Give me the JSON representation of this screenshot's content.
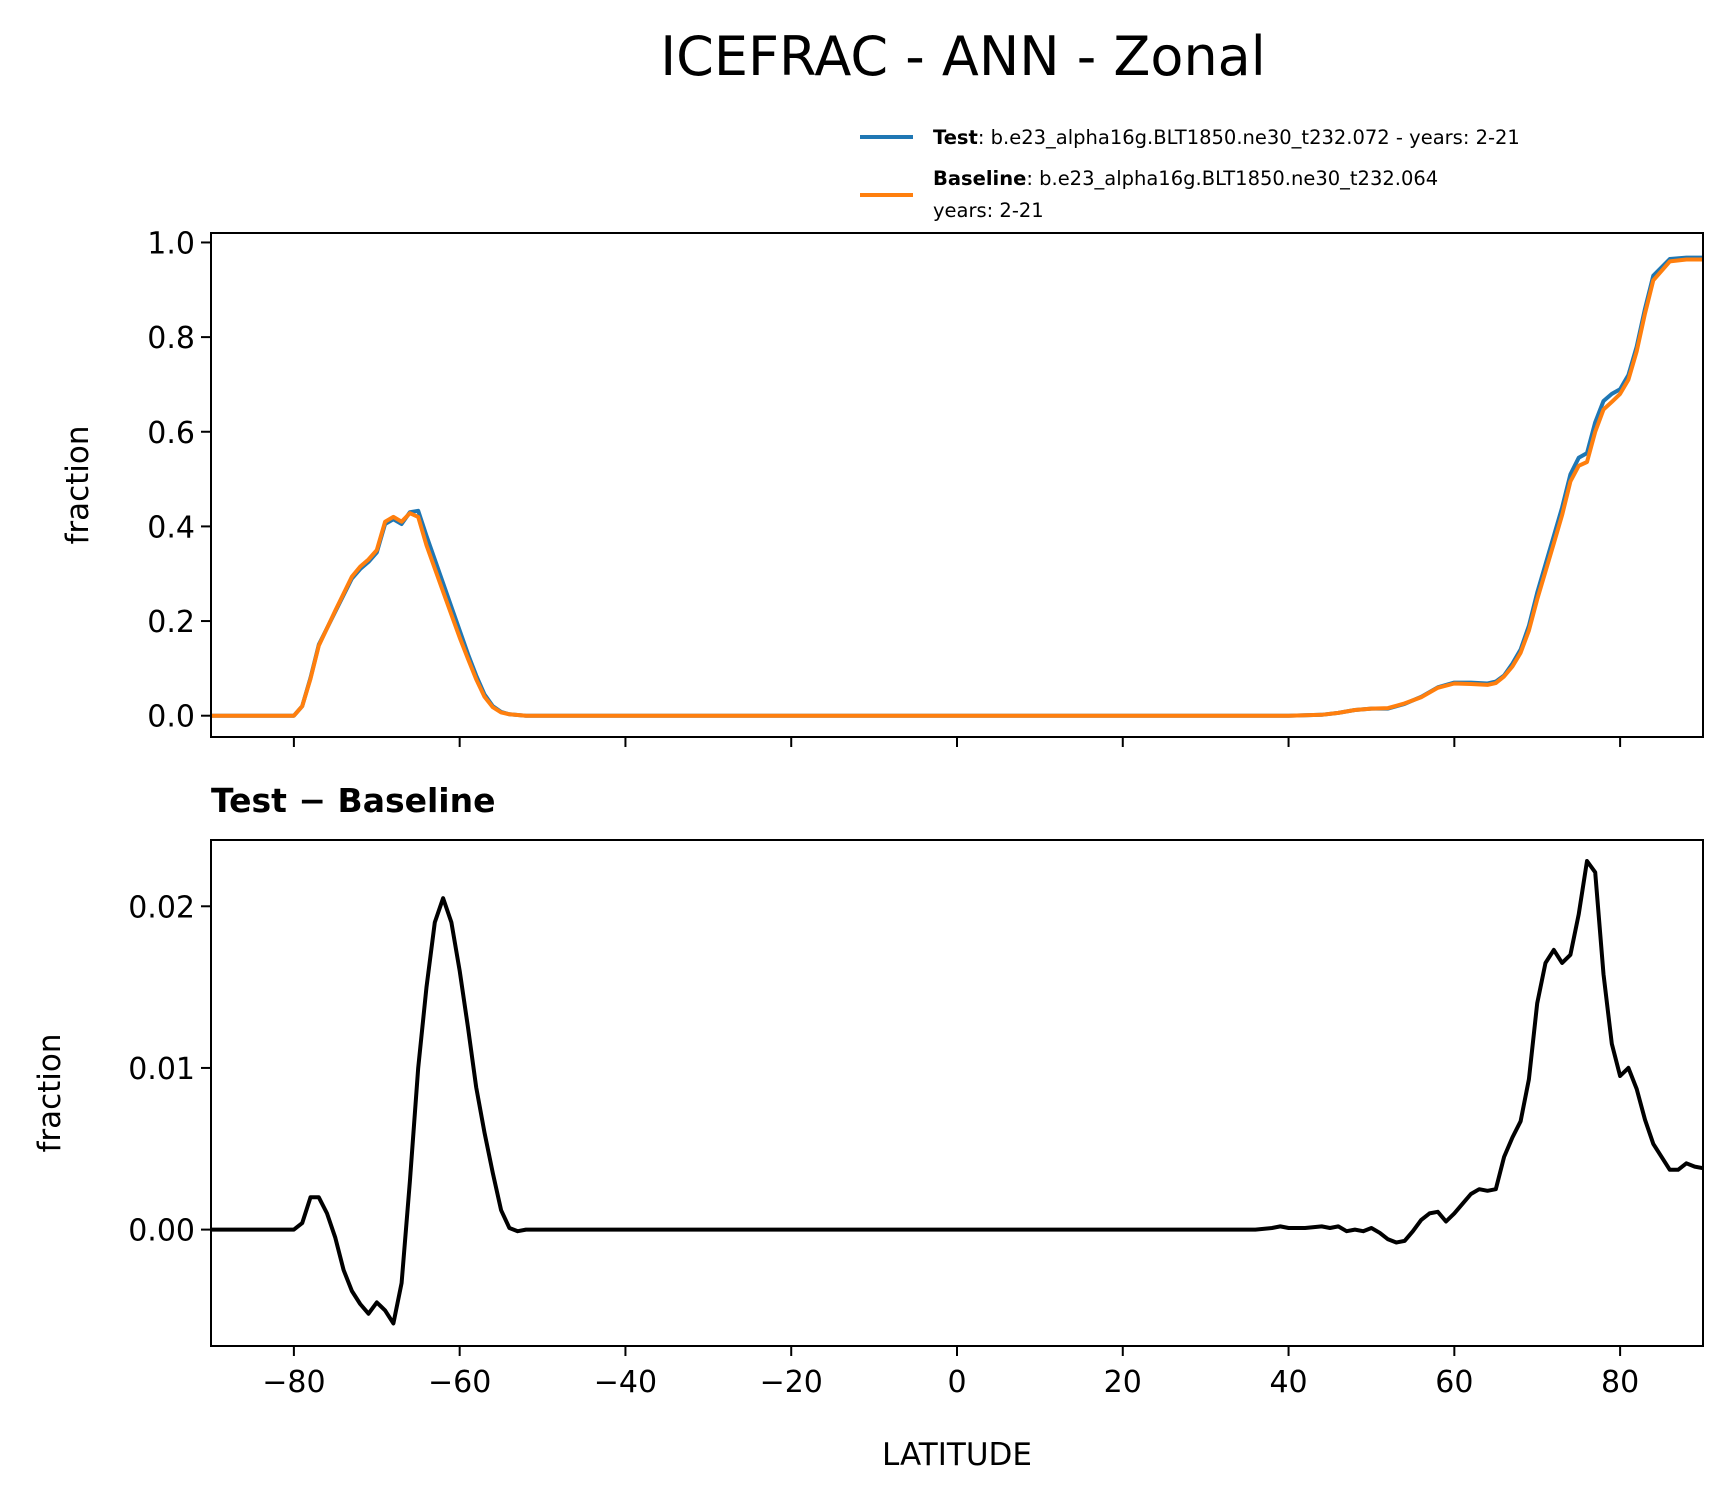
{
  "title": "ICEFRAC - ANN - Zonal",
  "legend": {
    "test": {
      "label": "Test",
      "text": ": b.e23_alpha16g.BLT1850.ne30_t232.072 - years: 2-21",
      "color": "#1f77b4"
    },
    "baseline": {
      "label": "Baseline",
      "text": ": b.e23_alpha16g.BLT1850.ne30_t232.064",
      "text2": "years: 2-21",
      "color": "#ff7f0e"
    }
  },
  "xlabel": "LATITUDE",
  "chart_data": [
    {
      "type": "line",
      "panel": "top",
      "ylabel": "fraction",
      "xlim": [
        -90,
        90
      ],
      "ylim": [
        -0.045,
        1.02
      ],
      "yticks": [
        0.0,
        0.2,
        0.4,
        0.6,
        0.8,
        1.0
      ],
      "ytick_labels": [
        "0.0",
        "0.2",
        "0.4",
        "0.6",
        "0.8",
        "1.0"
      ],
      "xticks": [
        -80,
        -60,
        -40,
        -20,
        0,
        20,
        40,
        60,
        80
      ],
      "series": [
        {
          "name": "Test",
          "color": "#1f77b4",
          "x": [
            -90,
            -80,
            -79,
            -78,
            -77,
            -75,
            -73,
            -72,
            -71,
            -70,
            -69,
            -68,
            -67,
            -66,
            -65,
            -64,
            -62,
            -60,
            -59,
            -58,
            -57,
            -56,
            -55,
            -54,
            -52,
            -40,
            0,
            40,
            44,
            46,
            48,
            50,
            52,
            54,
            56,
            58,
            60,
            62,
            64,
            65,
            66,
            67,
            68,
            69,
            70,
            71,
            72,
            73,
            74,
            75,
            76,
            77,
            78,
            79,
            80,
            81,
            82,
            83,
            84,
            86,
            88,
            90
          ],
          "y": [
            0.0,
            0.0,
            0.02,
            0.08,
            0.15,
            0.22,
            0.29,
            0.31,
            0.325,
            0.345,
            0.405,
            0.415,
            0.405,
            0.43,
            0.433,
            0.38,
            0.28,
            0.18,
            0.13,
            0.085,
            0.045,
            0.02,
            0.008,
            0.003,
            0.0,
            0.0,
            0.0,
            0.0,
            0.002,
            0.006,
            0.012,
            0.015,
            0.015,
            0.025,
            0.04,
            0.06,
            0.07,
            0.07,
            0.068,
            0.072,
            0.085,
            0.11,
            0.14,
            0.19,
            0.26,
            0.32,
            0.38,
            0.44,
            0.51,
            0.545,
            0.555,
            0.62,
            0.665,
            0.68,
            0.69,
            0.72,
            0.78,
            0.86,
            0.93,
            0.965,
            0.968,
            0.968
          ]
        },
        {
          "name": "Baseline",
          "color": "#ff7f0e",
          "x": [
            -90,
            -80,
            -79,
            -78,
            -77,
            -75,
            -73,
            -72,
            -71,
            -70,
            -69,
            -68,
            -67,
            -66,
            -65,
            -64,
            -62,
            -60,
            -59,
            -58,
            -57,
            -56,
            -55,
            -54,
            -52,
            -40,
            0,
            40,
            44,
            46,
            48,
            50,
            52,
            54,
            56,
            58,
            60,
            62,
            64,
            65,
            66,
            67,
            68,
            69,
            70,
            71,
            72,
            73,
            74,
            75,
            76,
            77,
            78,
            79,
            80,
            81,
            82,
            83,
            84,
            86,
            88,
            90
          ],
          "y": [
            0.0,
            0.0,
            0.02,
            0.078,
            0.148,
            0.222,
            0.294,
            0.315,
            0.33,
            0.35,
            0.41,
            0.42,
            0.41,
            0.428,
            0.42,
            0.36,
            0.262,
            0.165,
            0.12,
            0.077,
            0.04,
            0.018,
            0.007,
            0.003,
            0.0,
            0.0,
            0.0,
            0.0,
            0.002,
            0.006,
            0.012,
            0.015,
            0.016,
            0.026,
            0.039,
            0.059,
            0.068,
            0.067,
            0.065,
            0.069,
            0.083,
            0.104,
            0.133,
            0.18,
            0.246,
            0.305,
            0.364,
            0.424,
            0.495,
            0.528,
            0.536,
            0.6,
            0.647,
            0.663,
            0.68,
            0.71,
            0.77,
            0.85,
            0.92,
            0.96,
            0.964,
            0.964
          ]
        }
      ]
    },
    {
      "type": "line",
      "panel": "bottom",
      "title": "Test − Baseline",
      "ylabel": "fraction",
      "xlim": [
        -90,
        90
      ],
      "ylim": [
        -0.0072,
        0.0241
      ],
      "yticks": [
        0.0,
        0.01,
        0.02
      ],
      "ytick_labels": [
        "0.00",
        "0.01",
        "0.02"
      ],
      "xticks": [
        -80,
        -60,
        -40,
        -20,
        0,
        20,
        40,
        60,
        80
      ],
      "xtick_labels": [
        "−80",
        "−60",
        "−40",
        "−20",
        "0",
        "20",
        "40",
        "60",
        "80"
      ],
      "series": [
        {
          "name": "Test - Baseline",
          "color": "#000000",
          "x": [
            -90,
            -80,
            -79,
            -78,
            -77,
            -76,
            -75,
            -74,
            -73,
            -72,
            -71,
            -70,
            -69,
            -68,
            -67,
            -66,
            -65,
            -64,
            -63,
            -62,
            -61,
            -60,
            -59,
            -58,
            -57,
            -56,
            -55,
            -54,
            -53,
            -52,
            -40,
            0,
            36,
            38,
            39,
            40,
            42,
            44,
            45,
            46,
            47,
            48,
            49,
            50,
            51,
            52,
            53,
            54,
            55,
            56,
            57,
            58,
            59,
            60,
            61,
            62,
            63,
            64,
            65,
            66,
            67,
            68,
            69,
            70,
            71,
            72,
            73,
            74,
            75,
            76,
            77,
            78,
            79,
            80,
            81,
            82,
            83,
            84,
            85,
            86,
            87,
            88,
            89,
            90
          ],
          "y": [
            0.0,
            0.0,
            0.0004,
            0.002,
            0.002,
            0.001,
            -0.0005,
            -0.0025,
            -0.0038,
            -0.0046,
            -0.0052,
            -0.0045,
            -0.005,
            -0.0058,
            -0.0033,
            0.003,
            0.01,
            0.015,
            0.019,
            0.0205,
            0.019,
            0.016,
            0.0125,
            0.0088,
            0.006,
            0.0035,
            0.0012,
            0.0001,
            -0.0001,
            0.0,
            0.0,
            0.0,
            0.0,
            0.0001,
            0.0002,
            0.0001,
            0.0001,
            0.0002,
            0.0001,
            0.0002,
            -0.0001,
            0.0,
            -0.0001,
            0.0001,
            -0.0002,
            -0.0006,
            -0.0008,
            -0.0007,
            -0.0001,
            0.0006,
            0.001,
            0.0011,
            0.0005,
            0.001,
            0.0016,
            0.0022,
            0.0025,
            0.0024,
            0.0025,
            0.0045,
            0.0057,
            0.0067,
            0.0093,
            0.014,
            0.0165,
            0.0173,
            0.0165,
            0.017,
            0.0195,
            0.0228,
            0.0221,
            0.0158,
            0.0115,
            0.0095,
            0.01,
            0.0087,
            0.0068,
            0.0053,
            0.0045,
            0.0037,
            0.0037,
            0.0041,
            0.0039,
            0.0038
          ]
        }
      ]
    }
  ]
}
